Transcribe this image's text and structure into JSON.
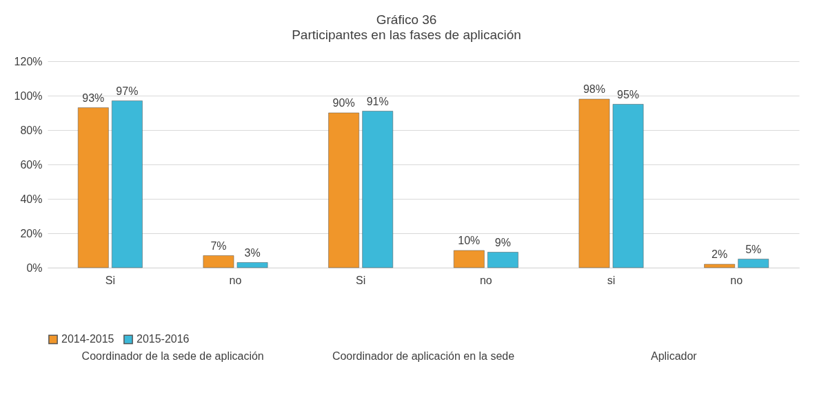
{
  "chart_data": {
    "type": "bar",
    "title": "Gráfico 36",
    "subtitle": "Participantes en las fases de aplicación",
    "categories": [
      "Si",
      "no",
      "Si",
      "no",
      "si",
      "no"
    ],
    "series": [
      {
        "name": "2014-2015",
        "color": "#f0962a",
        "values": [
          93,
          7,
          90,
          10,
          98,
          2
        ],
        "value_labels": [
          "93%",
          "7%",
          "90%",
          "10%",
          "98%",
          "2%"
        ]
      },
      {
        "name": "2015-2016",
        "color": "#3cb9d9",
        "values": [
          97,
          3,
          91,
          9,
          95,
          5
        ],
        "value_labels": [
          "97%",
          "3%",
          "91%",
          "9%",
          "95%",
          "5%"
        ]
      }
    ],
    "annotations": [
      "Coordinador de la sede de aplicación",
      "Coordinador de aplicación en la sede",
      "Aplicador"
    ],
    "ylim": [
      0,
      120
    ],
    "yticks": [
      {
        "value": 0,
        "label": "0%"
      },
      {
        "value": 20,
        "label": "20%"
      },
      {
        "value": 40,
        "label": "40%"
      },
      {
        "value": 60,
        "label": "60%"
      },
      {
        "value": 80,
        "label": "80%"
      },
      {
        "value": 100,
        "label": "100%"
      },
      {
        "value": 120,
        "label": "120%"
      }
    ],
    "grid": "y",
    "legend": "bottom"
  }
}
